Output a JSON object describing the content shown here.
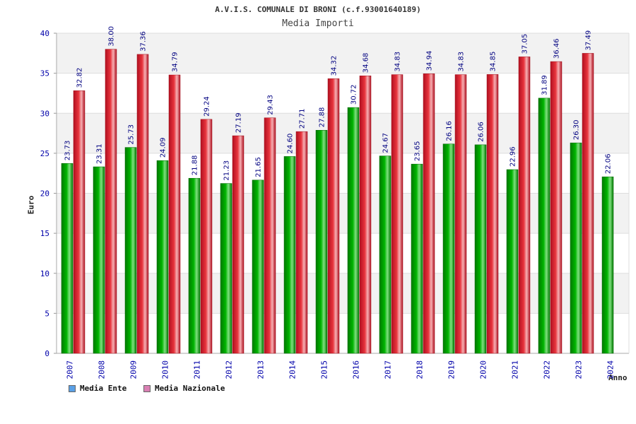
{
  "title": "A.V.I.S. COMUNALE DI BRONI (c.f.93001640189)",
  "subtitle": "Media Importi",
  "colors": {
    "ente": "#00b400",
    "nazionale": "#e8333c",
    "legend_ente": "#5aa0e6",
    "legend_nazionale": "#d97fb3",
    "axis_text": "#0000aa",
    "value_text": "#000080",
    "band": "#f2f2f2"
  },
  "chart_data": {
    "type": "bar",
    "title": "A.V.I.S. COMUNALE DI BRONI (c.f.93001640189)",
    "subtitle": "Media Importi",
    "xlabel": "Anno",
    "ylabel": "Euro",
    "ylim": [
      0,
      40
    ],
    "yticks": [
      0,
      5,
      10,
      15,
      20,
      25,
      30,
      35,
      40
    ],
    "grid": true,
    "legend_position": "bottom-left",
    "categories": [
      "2007",
      "2008",
      "2009",
      "2010",
      "2011",
      "2012",
      "2013",
      "2014",
      "2015",
      "2016",
      "2017",
      "2018",
      "2019",
      "2020",
      "2021",
      "2022",
      "2023",
      "2024"
    ],
    "series": [
      {
        "name": "Media Ente",
        "values": [
          23.73,
          23.31,
          25.73,
          24.09,
          21.88,
          21.23,
          21.65,
          24.6,
          27.88,
          30.72,
          24.67,
          23.65,
          26.16,
          26.06,
          22.96,
          31.89,
          26.3,
          22.06
        ],
        "labels": [
          "23.73",
          "23.31",
          "25.73",
          "24.09",
          "21.88",
          "21.23",
          "21.65",
          "24.60",
          "27.88",
          "30.72",
          "24.67",
          "23.65",
          "26.16",
          "26.06",
          "22.96",
          "31.89",
          "26.30",
          "22.06"
        ]
      },
      {
        "name": "Media Nazionale",
        "values": [
          32.82,
          38.0,
          37.36,
          34.79,
          29.24,
          27.19,
          29.43,
          27.71,
          34.32,
          34.68,
          34.83,
          34.94,
          34.83,
          34.85,
          37.05,
          36.46,
          37.49,
          null
        ],
        "labels": [
          "32.82",
          "38.00",
          "37.36",
          "34.79",
          "29.24",
          "27.19",
          "29.43",
          "27.71",
          "34.32",
          "34.68",
          "34.83",
          "34.94",
          "34.83",
          "34.85",
          "37.05",
          "36.46",
          "37.49",
          ""
        ]
      }
    ]
  }
}
